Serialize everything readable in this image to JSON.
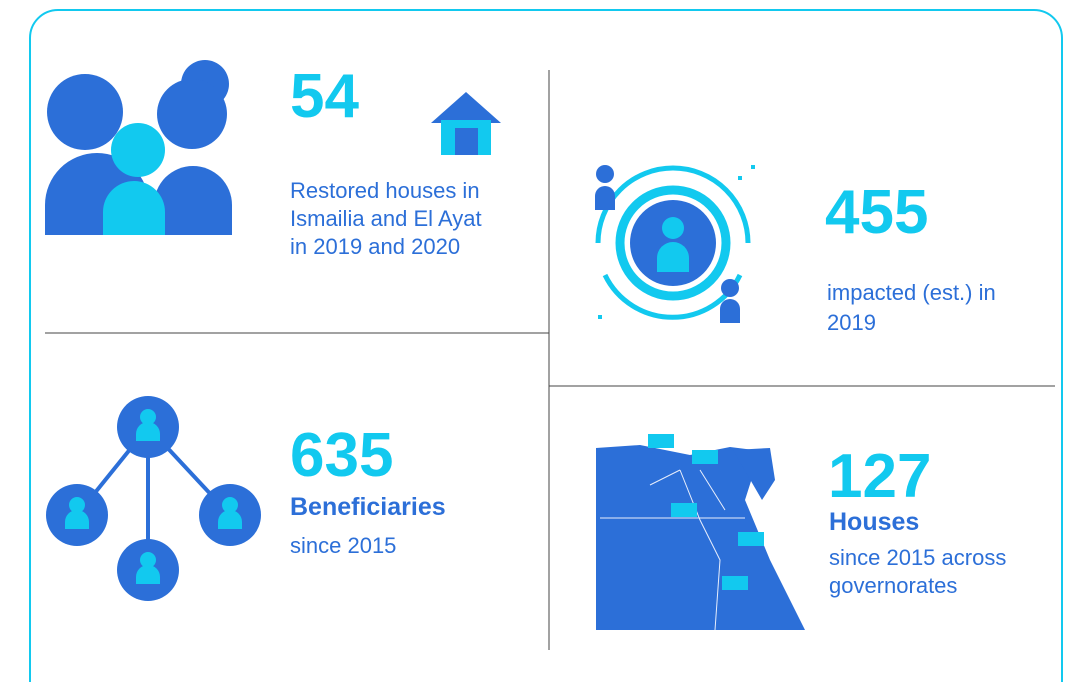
{
  "panels": [
    {
      "number": "54",
      "lines": [
        "Restored houses in",
        "Ismailia and El Ayat",
        "in 2019 and 2020"
      ]
    },
    {
      "number": "455",
      "lines": [
        "impacted (est.) in",
        "2019"
      ]
    },
    {
      "number": "635",
      "label": "Beneficiaries",
      "lines": [
        "since 2015"
      ]
    },
    {
      "number": "127",
      "label": "Houses",
      "lines": [
        "since 2015 across",
        "governorates"
      ]
    }
  ]
}
